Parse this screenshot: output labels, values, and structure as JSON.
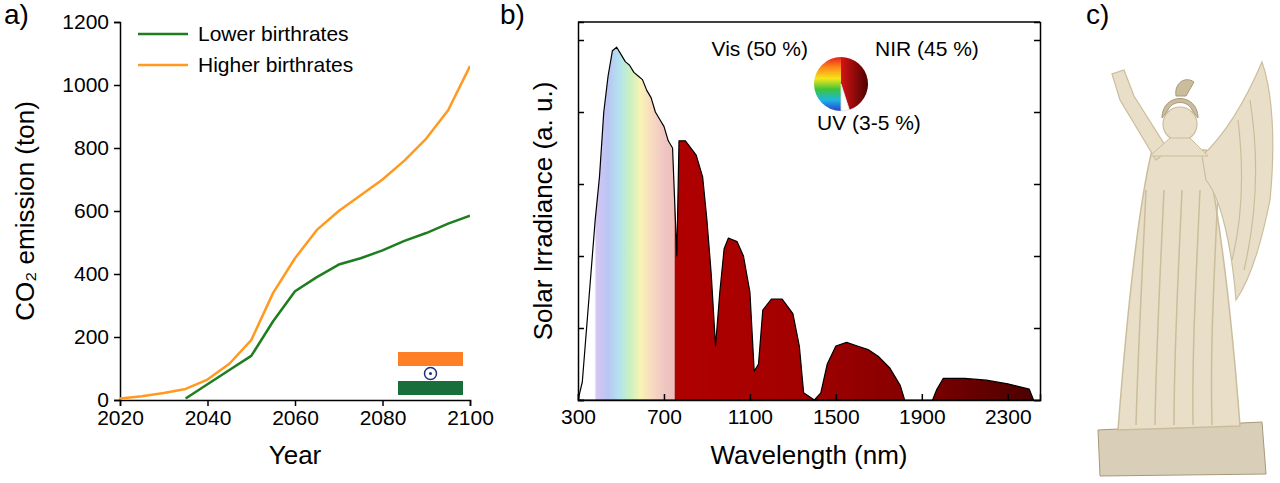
{
  "panel_labels": [
    "a)",
    "b)",
    "c)"
  ],
  "chart_data": [
    {
      "type": "line",
      "x_label": "Year",
      "y_label": "CO₂ emission (ton)",
      "x": [
        2020,
        2025,
        2030,
        2035,
        2040,
        2045,
        2050,
        2055,
        2060,
        2065,
        2070,
        2075,
        2080,
        2085,
        2090,
        2095,
        2100
      ],
      "series": [
        {
          "name": "Lower birthrates",
          "color": "#1e7d1e",
          "values": [
            null,
            null,
            null,
            5,
            50,
            95,
            140,
            250,
            345,
            390,
            430,
            450,
            475,
            505,
            530,
            560,
            585
          ]
        },
        {
          "name": "Higher birthrates",
          "color": "#ff9a1f",
          "values": [
            5,
            12,
            22,
            35,
            65,
            115,
            190,
            340,
            450,
            540,
            600,
            650,
            700,
            760,
            830,
            920,
            1060
          ]
        }
      ],
      "xlim": [
        2020,
        2100
      ],
      "xticks": [
        2020,
        2040,
        2060,
        2080,
        2100
      ],
      "ylim": [
        0,
        1200
      ],
      "yticks": [
        0,
        200,
        400,
        600,
        800,
        1000,
        1200
      ],
      "legend": "upper left",
      "grid": false
    },
    {
      "type": "area",
      "x_label": "Wavelength (nm)",
      "y_label": "Solar Irradiance (a. u.)",
      "x": [
        300,
        320,
        340,
        360,
        380,
        400,
        420,
        440,
        460,
        480,
        500,
        520,
        540,
        560,
        580,
        600,
        620,
        640,
        660,
        680,
        700,
        720,
        740,
        760,
        770,
        800,
        850,
        880,
        900,
        920,
        940,
        960,
        980,
        1000,
        1040,
        1070,
        1100,
        1120,
        1140,
        1160,
        1200,
        1250,
        1300,
        1330,
        1350,
        1400,
        1430,
        1460,
        1500,
        1550,
        1600,
        1650,
        1700,
        1750,
        1800,
        1820,
        1950,
        1970,
        2000,
        2100,
        2200,
        2300,
        2400,
        2420
      ],
      "values": [
        0,
        0.05,
        0.2,
        0.35,
        0.5,
        0.62,
        0.8,
        0.9,
        0.97,
        0.98,
        0.96,
        0.94,
        0.93,
        0.91,
        0.9,
        0.89,
        0.86,
        0.84,
        0.8,
        0.78,
        0.76,
        0.72,
        0.7,
        0.4,
        0.72,
        0.72,
        0.68,
        0.62,
        0.5,
        0.35,
        0.15,
        0.3,
        0.42,
        0.45,
        0.44,
        0.4,
        0.3,
        0.08,
        0.1,
        0.25,
        0.28,
        0.28,
        0.24,
        0.15,
        0.02,
        0,
        0.02,
        0.1,
        0.15,
        0.16,
        0.15,
        0.14,
        0.12,
        0.09,
        0.04,
        0,
        0,
        0.03,
        0.06,
        0.06,
        0.055,
        0.045,
        0.03,
        0
      ],
      "xlim": [
        300,
        2450
      ],
      "xticks": [
        300,
        700,
        1100,
        1500,
        1900,
        2300
      ],
      "ylim": [
        0,
        1.05
      ],
      "yticks": [
        0,
        0.2,
        0.4,
        0.6,
        0.8,
        1.0
      ],
      "tick_labels": "x",
      "grid": false
    },
    {
      "type": "pie",
      "categories": [
        "Vis (50 %)",
        "NIR (45 %)",
        "UV (3-5 %)"
      ],
      "values": [
        50,
        45,
        5
      ]
    }
  ]
}
